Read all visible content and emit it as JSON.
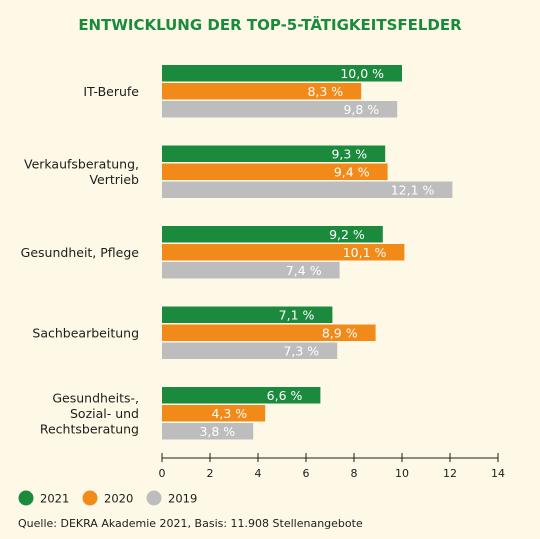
{
  "chart_data": {
    "type": "bar",
    "orientation": "horizontal",
    "title": "ENTWICKLUNG DER TOP-5-TÄTIGKEITSFELDER",
    "categories": [
      [
        "IT-Berufe"
      ],
      [
        "Verkaufsberatung,",
        "Vertrieb"
      ],
      [
        "Gesundheit, Pflege"
      ],
      [
        "Sachbearbeitung"
      ],
      [
        "Gesundheits-,",
        "Sozial- und",
        "Rechtsberatung"
      ]
    ],
    "series": [
      {
        "name": "2021",
        "color": "#1b8a3c",
        "values": [
          10.0,
          9.3,
          9.2,
          7.1,
          6.6
        ],
        "labels": [
          "10,0 %",
          "9,3 %",
          "9,2 %",
          "7,1 %",
          "6,6 %"
        ]
      },
      {
        "name": "2020",
        "color": "#f28a1a",
        "values": [
          8.3,
          9.4,
          10.1,
          8.9,
          4.3
        ],
        "labels": [
          "8,3 %",
          "9,4 %",
          "10,1 %",
          "8,9 %",
          "4,3 %"
        ]
      },
      {
        "name": "2019",
        "color": "#bdbdbd",
        "values": [
          9.8,
          12.1,
          7.4,
          7.3,
          3.8
        ],
        "labels": [
          "9,8 %",
          "12,1 %",
          "7,4 %",
          "7,3 %",
          "3,8 %"
        ]
      }
    ],
    "xlim": [
      0,
      14
    ],
    "xticks": [
      0,
      2,
      4,
      6,
      8,
      10,
      12,
      14
    ],
    "grid": false,
    "legend_position": "bottom-left"
  },
  "source": "Quelle: DEKRA Akademie 2021, Basis: 11.908 Stellenangebote"
}
